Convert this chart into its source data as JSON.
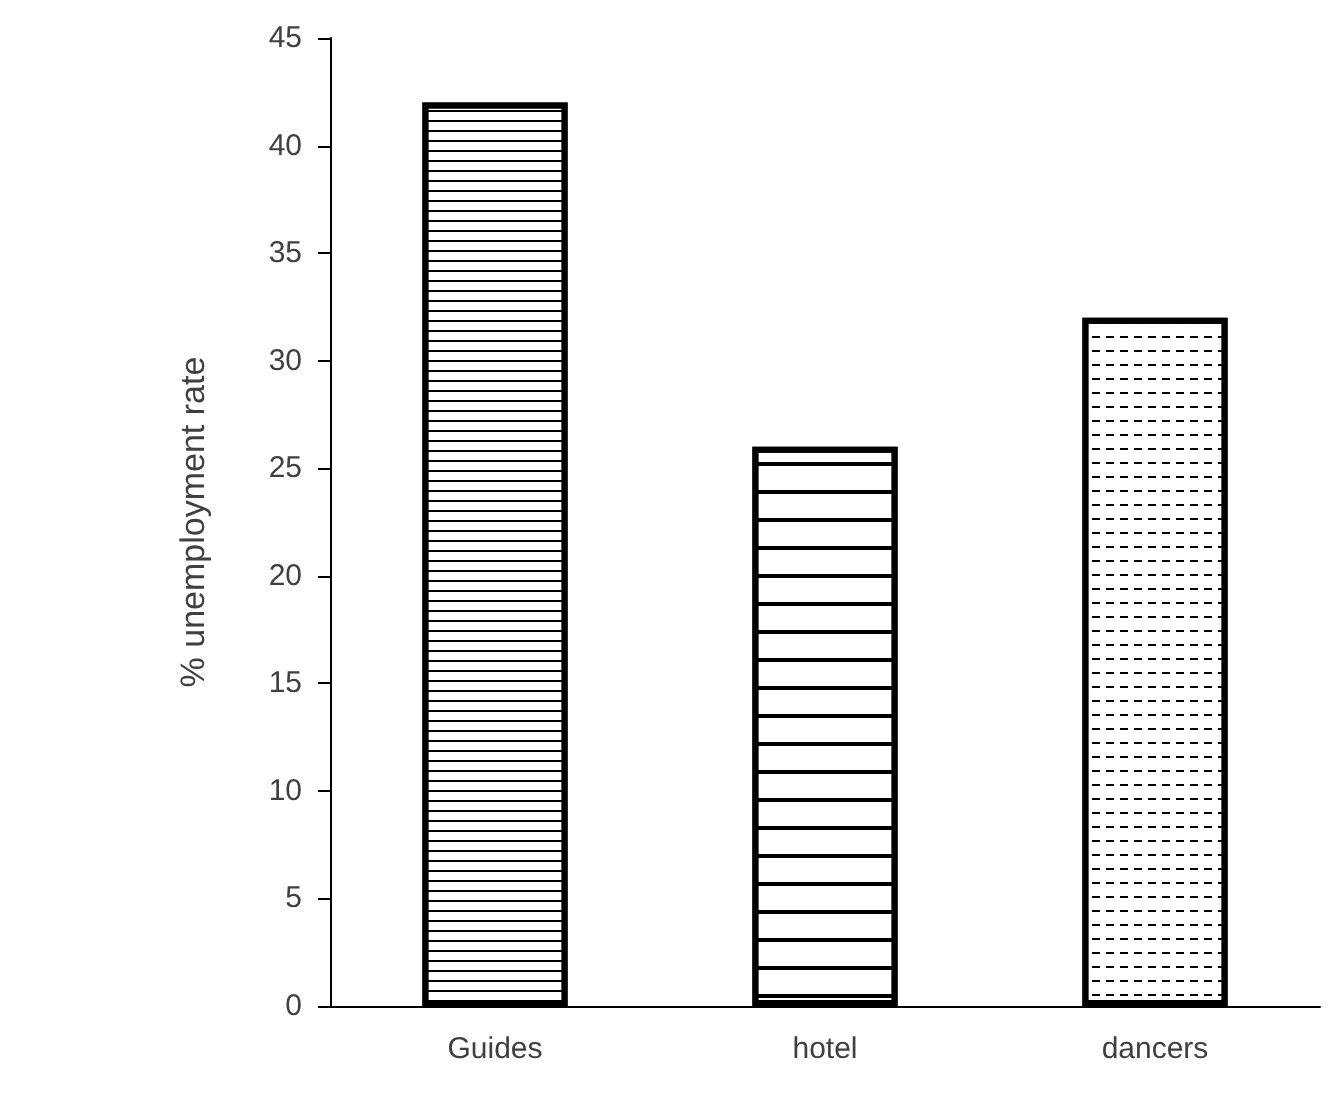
{
  "chart_data": {
    "type": "bar",
    "ylabel": "% unemployment rate",
    "categories": [
      "Guides",
      "hotel",
      "dancers"
    ],
    "values": [
      42,
      26,
      32
    ],
    "color": "#000000",
    "ylim": [
      0,
      45
    ],
    "yticks": [
      0,
      5,
      10,
      15,
      20,
      25,
      30,
      35,
      40,
      45
    ],
    "grid": false
  }
}
